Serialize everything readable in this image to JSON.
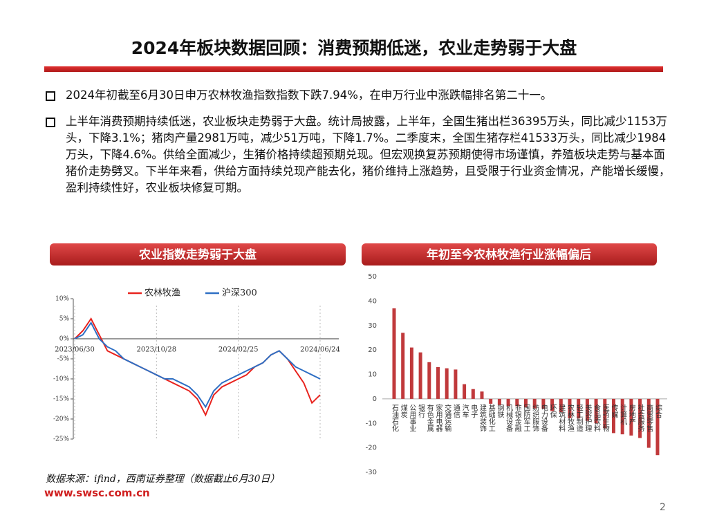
{
  "header": {
    "title": "2024年板块数据回顾：消费预期低迷，农业走势弱于大盘"
  },
  "bullets": [
    "2024年初截至6月30日申万农林牧渔指数指数下跌7.94%，在申万行业中涨跌幅排名第二十一。",
    "上半年消费预期持续低迷，农业板块走势弱于大盘。统计局披露，上半年，全国生猪出栏36395万头，同比减少1153万头，下降3.1%；猪肉产量2981万吨，减少51万吨，下降1.7%。二季度末，全国生猪存栏41533万头，同比减少1984万头，下降4.6%。供给全面减少，生猪价格持续超预期兑现。但宏观换复苏预期使得市场谨慎，养殖板块走势与基本面猪价走势劈叉。下半年来看，供给方面持续兑现产能去化，猪价维持上涨趋势，且受限于行业资金情况，产能增长缓慢，盈利持续性好，农业板块修复可期。"
  ],
  "chart_data": [
    {
      "type": "line",
      "title": "农业指数走势弱于大盘",
      "categories": [
        "2023/06/30",
        null,
        null,
        null,
        null,
        null,
        null,
        null,
        null,
        null,
        "2023/10/28",
        null,
        null,
        null,
        null,
        null,
        null,
        null,
        null,
        null,
        "2024/02/25",
        null,
        null,
        null,
        null,
        null,
        null,
        null,
        null,
        null,
        "2024/06/24"
      ],
      "series": [
        {
          "name": "农林牧渔",
          "color": "#e8231e",
          "values": [
            0,
            2,
            5,
            1,
            -3,
            -4,
            -5,
            -6,
            -7,
            -8,
            -9,
            -10,
            -11,
            -12,
            -13,
            -15,
            -19,
            -14,
            -12,
            -11,
            -10,
            -9,
            -7,
            -6,
            -4,
            -3,
            -5,
            -8,
            -11,
            -16,
            -14
          ]
        },
        {
          "name": "沪深300",
          "color": "#2e6fc4",
          "values": [
            0,
            1,
            4,
            0,
            -2,
            -3,
            -5,
            -6,
            -7,
            -8,
            -9,
            -10,
            -10,
            -11,
            -12,
            -14,
            -17,
            -13,
            -11,
            -10,
            -9,
            -8,
            -7,
            -6,
            -4,
            -3,
            -5,
            -7,
            -8,
            -9,
            -10
          ]
        }
      ],
      "ylim": [
        -25,
        10
      ],
      "yticks": [
        {
          "value": 10,
          "label": "10%"
        },
        {
          "value": 5,
          "label": "5%"
        },
        {
          "value": 0,
          "label": "0%"
        },
        {
          "value": -5,
          "label": "-5%"
        },
        {
          "value": -10,
          "label": "-10%"
        },
        {
          "value": -15,
          "label": "-15%"
        },
        {
          "value": -20,
          "label": "-20%"
        },
        {
          "value": -25,
          "label": "-25%"
        }
      ],
      "legend": "top"
    },
    {
      "type": "bar",
      "title": "年初至今农林牧渔行业涨幅偏后",
      "categories": [
        "石油石化",
        "煤炭",
        "公用事业",
        "银行",
        "有色金属",
        "家用电器",
        "交通运输",
        "通信",
        "汽车",
        "电子",
        "建筑装饰",
        "基础化工",
        "钢铁",
        "机械设备",
        "非银金融",
        "国防军工",
        "纺织服饰",
        "电力设备",
        "环保",
        "建筑材料",
        "农林牧渔",
        "轻工制造",
        "美容护理",
        "食品饮料",
        "医药生物",
        "传媒",
        "计算机",
        "房地产",
        "社会服务",
        "商贸零售",
        "综合"
      ],
      "values": [
        37,
        27,
        21,
        19,
        15,
        13,
        12.5,
        12,
        6,
        4,
        3,
        -2,
        -2.5,
        -3,
        -3,
        -3.5,
        -4,
        -4,
        -5,
        -5.5,
        -7.94,
        -8,
        -9,
        -10,
        -12,
        -14,
        -14.5,
        -15,
        -16,
        -20,
        -23
      ],
      "color": "#c0393b",
      "ylim": [
        -30,
        50
      ],
      "yticks": [
        50,
        40,
        30,
        20,
        10,
        0,
        -10,
        -20,
        -30
      ]
    }
  ],
  "footer": {
    "source": "数据来源：ifind，西南证券整理（数据截止6月30日）",
    "url": "www.swsc.com.cn",
    "page": "2"
  }
}
